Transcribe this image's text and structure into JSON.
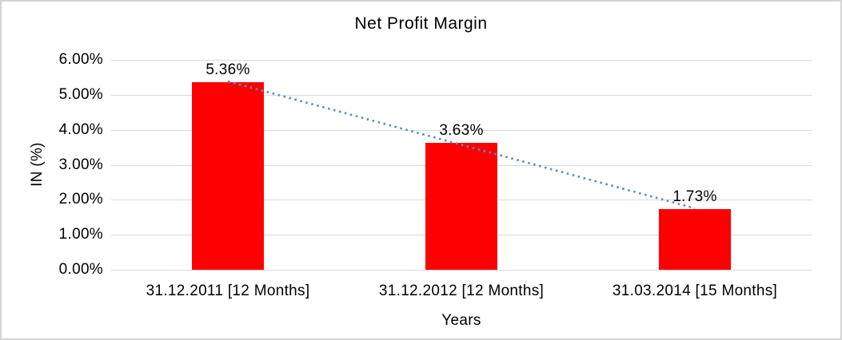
{
  "page": {
    "background": "#FFFFFF",
    "frame_border_color": "#D4D4D4"
  },
  "chart_data": {
    "type": "bar",
    "title": "Net Profit Margin",
    "xlabel": "Years",
    "ylabel": "IN (%)",
    "categories": [
      "31.12.2011 [12 Months]",
      "31.12.2012 [12 Months]",
      "31.03.2014 [15 Months]"
    ],
    "values": [
      5.36,
      3.63,
      1.73
    ],
    "data_labels": [
      "5.36%",
      "3.63%",
      "1.73%"
    ],
    "y_ticks": [
      "0.00%",
      "1.00%",
      "2.00%",
      "3.00%",
      "4.00%",
      "5.00%",
      "6.00%"
    ],
    "ylim": [
      0,
      6
    ],
    "grid": true,
    "legend": false,
    "bar_color": "#FF0000",
    "gridline_color": "#D9D9D9",
    "text_color": "#000000",
    "trendline": {
      "type": "linear",
      "style": "dotted",
      "color": "#5B8DC8"
    }
  }
}
